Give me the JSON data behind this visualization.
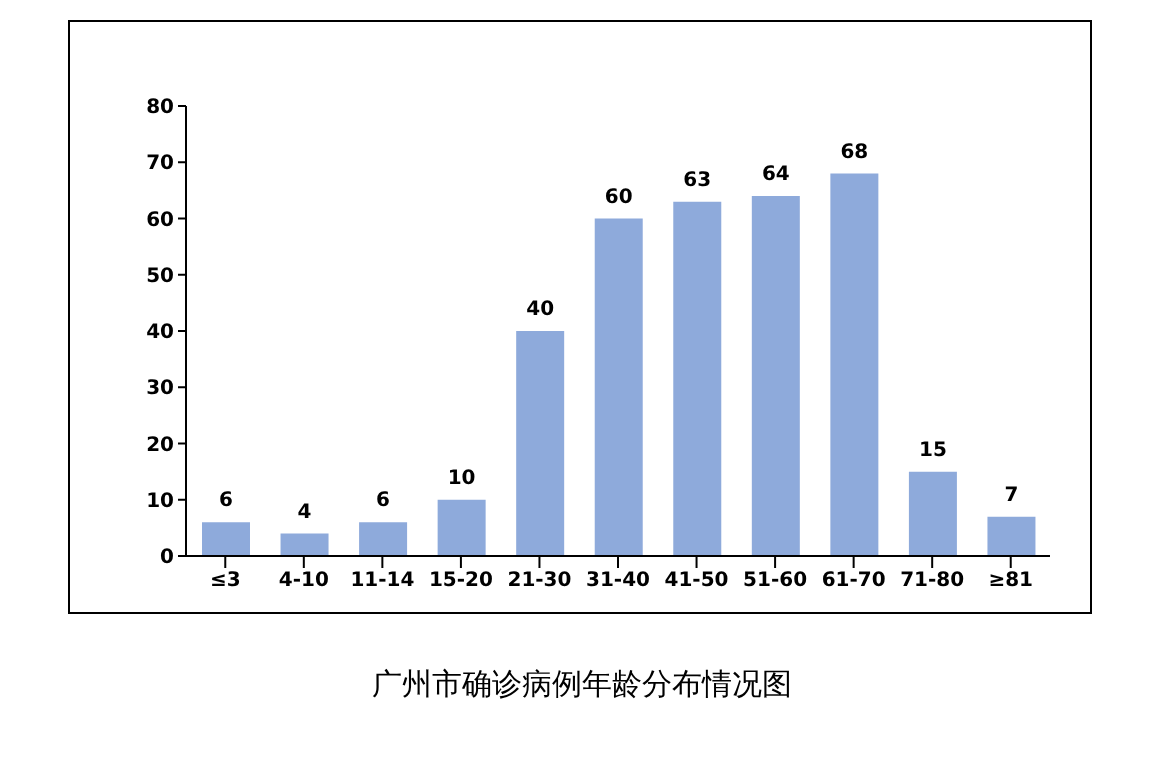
{
  "chart_data": {
    "type": "bar",
    "title": "广州市确诊病例年龄分布情况图",
    "categories": [
      "≤3",
      "4-10",
      "11-14",
      "15-20",
      "21-30",
      "31-40",
      "41-50",
      "51-60",
      "61-70",
      "71-80",
      "≥81"
    ],
    "values": [
      6,
      4,
      6,
      10,
      40,
      60,
      63,
      64,
      68,
      15,
      7
    ],
    "color": "#8eaadb",
    "ylim": [
      0,
      80
    ],
    "yticks": [
      0,
      10,
      20,
      30,
      40,
      50,
      60,
      70,
      80
    ],
    "grid": false,
    "data_labels": true
  }
}
